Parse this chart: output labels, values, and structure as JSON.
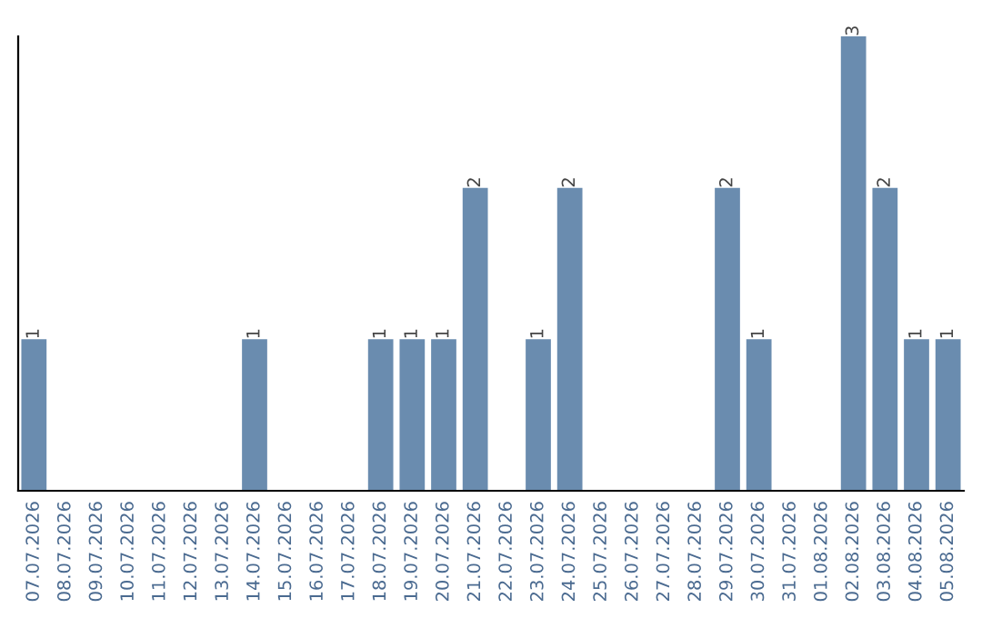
{
  "chart_data": {
    "type": "bar",
    "categories": [
      "07.07.2026",
      "08.07.2026",
      "09.07.2026",
      "10.07.2026",
      "11.07.2026",
      "12.07.2026",
      "13.07.2026",
      "14.07.2026",
      "15.07.2026",
      "16.07.2026",
      "17.07.2026",
      "18.07.2026",
      "19.07.2026",
      "20.07.2026",
      "21.07.2026",
      "22.07.2026",
      "23.07.2026",
      "24.07.2026",
      "25.07.2026",
      "26.07.2026",
      "27.07.2026",
      "28.07.2026",
      "29.07.2026",
      "30.07.2026",
      "31.07.2026",
      "01.08.2026",
      "02.08.2026",
      "03.08.2026",
      "04.08.2026",
      "05.08.2026"
    ],
    "values": [
      1,
      0,
      0,
      0,
      0,
      0,
      0,
      1,
      0,
      0,
      0,
      1,
      1,
      1,
      2,
      0,
      1,
      2,
      0,
      0,
      0,
      0,
      2,
      1,
      0,
      0,
      3,
      2,
      1,
      1
    ],
    "value_labels": [
      "1",
      null,
      null,
      null,
      null,
      null,
      null,
      "1",
      null,
      null,
      null,
      "1",
      "1",
      "1",
      "2",
      null,
      "1",
      "2",
      null,
      null,
      null,
      null,
      "2",
      "1",
      null,
      null,
      "3",
      "2",
      "1",
      "1"
    ],
    "color": "#6a8caf",
    "grid": false,
    "legend": false,
    "tick_labels": "x"
  }
}
